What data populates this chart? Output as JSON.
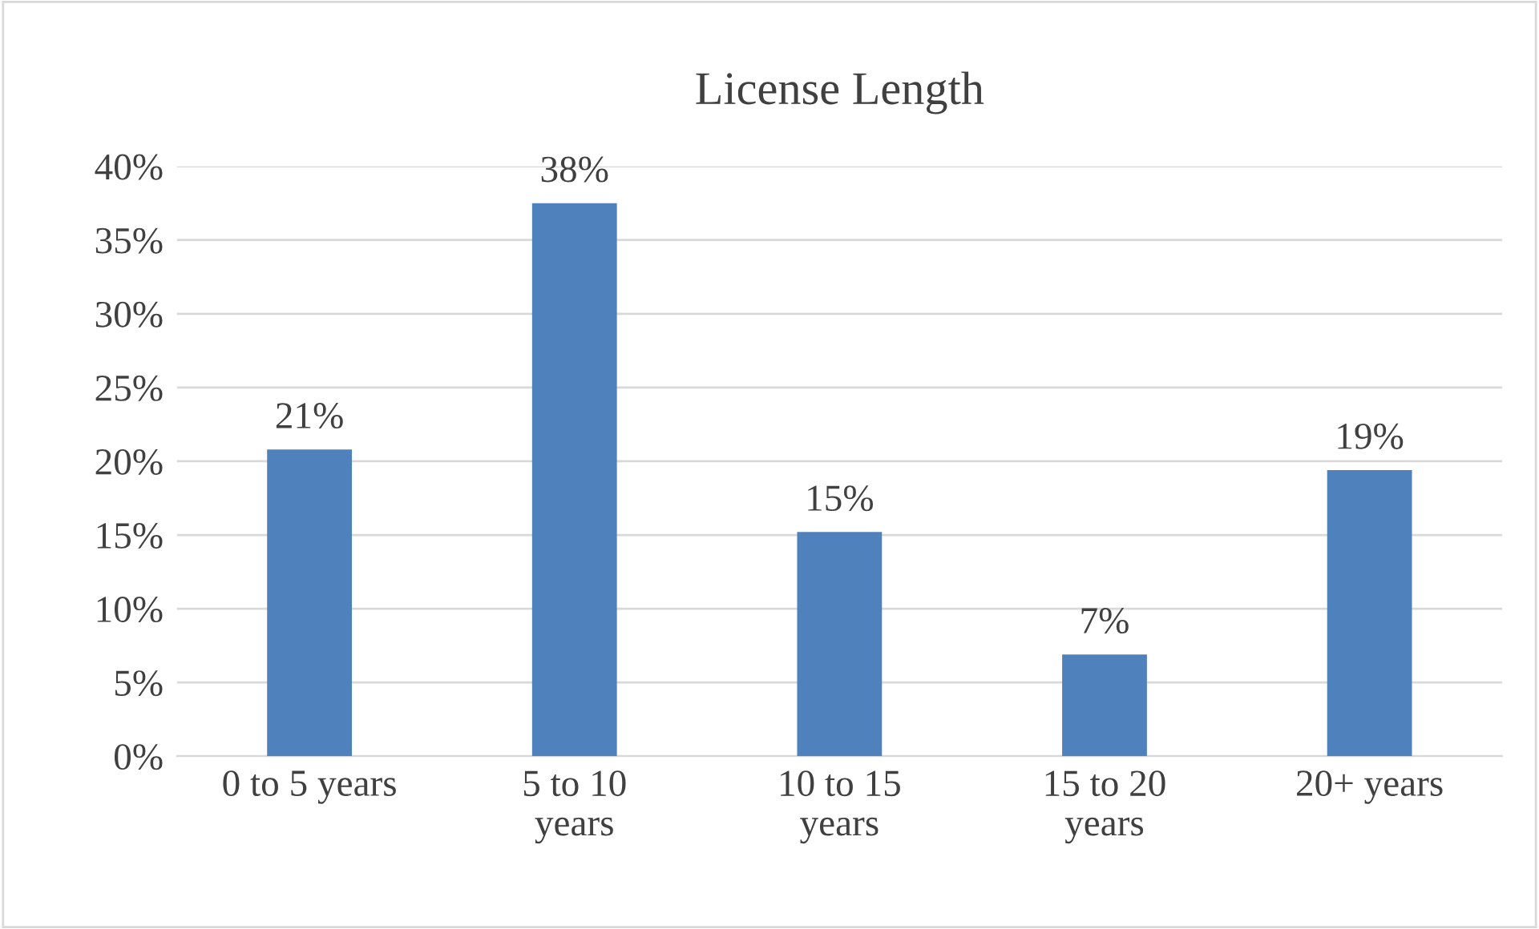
{
  "chart_data": {
    "type": "bar",
    "title": "License Length",
    "categories": [
      "0 to 5 years",
      "5 to 10 years",
      "10 to 15 years",
      "15 to 20 years",
      "20+ years"
    ],
    "values": [
      20.8,
      37.5,
      15.2,
      6.9,
      19.4
    ],
    "value_labels": [
      "21%",
      "38%",
      "15%",
      "7%",
      "19%"
    ],
    "color": "#4f81bd",
    "ylim": [
      0,
      40
    ],
    "yticks": [
      {
        "value": 0,
        "label": "0%"
      },
      {
        "value": 5,
        "label": "5%"
      },
      {
        "value": 10,
        "label": "10%"
      },
      {
        "value": 15,
        "label": "15%"
      },
      {
        "value": 20,
        "label": "20%"
      },
      {
        "value": 25,
        "label": "25%"
      },
      {
        "value": 30,
        "label": "30%"
      },
      {
        "value": 35,
        "label": "35%"
      },
      {
        "value": 40,
        "label": "40%"
      }
    ],
    "grid": "y",
    "legend": false
  }
}
